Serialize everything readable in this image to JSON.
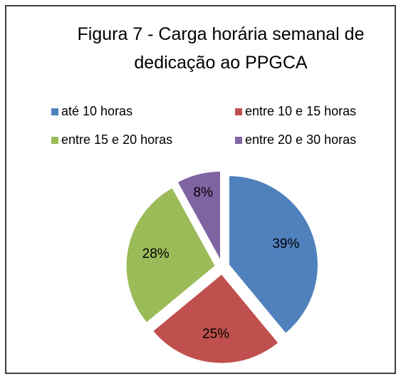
{
  "chart_data": {
    "type": "pie",
    "title": "Figura 7 - Carga horária semanal de dedicação ao PPGCA",
    "categories": [
      "até 10 horas",
      "entre 10 e 15 horas",
      "entre 15 e 20 horas",
      "entre 20 e 30 horas"
    ],
    "values": [
      39,
      25,
      28,
      8
    ],
    "value_labels": [
      "39%",
      "25%",
      "28%",
      "8%"
    ],
    "colors": [
      "#4f81bd",
      "#c0504d",
      "#9bbb59",
      "#8064a2"
    ],
    "legend": "top"
  }
}
